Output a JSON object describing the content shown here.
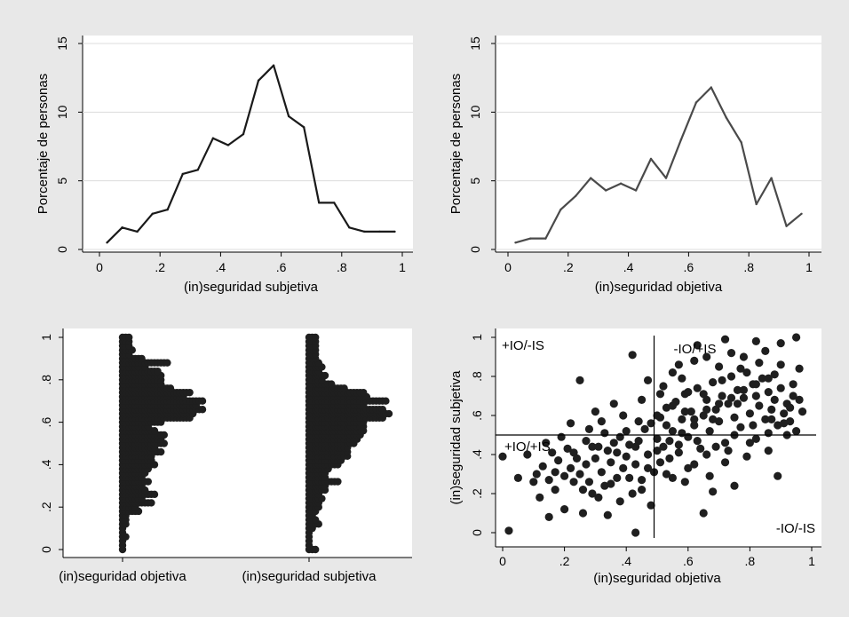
{
  "chart_data": [
    {
      "type": "line",
      "xlabel": "(in)seguridad subjetiva",
      "ylabel": "Porcentaje de personas",
      "xlim": [
        0,
        1
      ],
      "ylim": [
        0,
        15
      ],
      "x_ticks": [
        "0",
        ".2",
        ".4",
        ".6",
        ".8",
        "1"
      ],
      "y_ticks": [
        "0",
        "5",
        "10",
        "15"
      ],
      "x": [
        0.025,
        0.075,
        0.125,
        0.175,
        0.225,
        0.275,
        0.325,
        0.375,
        0.425,
        0.475,
        0.525,
        0.575,
        0.625,
        0.675,
        0.725,
        0.775,
        0.825,
        0.875,
        0.925,
        0.975
      ],
      "values": [
        0.5,
        1.6,
        1.3,
        2.6,
        2.9,
        5.5,
        5.8,
        8.1,
        7.6,
        8.4,
        12.3,
        13.4,
        9.7,
        8.9,
        3.4,
        3.4,
        1.6,
        1.3,
        1.3,
        1.3
      ],
      "color": "#1a1a1a"
    },
    {
      "type": "line",
      "xlabel": "(in)seguridad objetiva",
      "ylabel": "Porcentaje de personas",
      "xlim": [
        0,
        1
      ],
      "ylim": [
        0,
        15
      ],
      "x_ticks": [
        "0",
        ".2",
        ".4",
        ".6",
        ".8",
        "1"
      ],
      "y_ticks": [
        "0",
        "5",
        "10",
        "15"
      ],
      "x": [
        0.025,
        0.075,
        0.125,
        0.175,
        0.225,
        0.275,
        0.325,
        0.375,
        0.425,
        0.475,
        0.525,
        0.575,
        0.625,
        0.675,
        0.725,
        0.775,
        0.825,
        0.875,
        0.925,
        0.975
      ],
      "values": [
        0.5,
        0.8,
        0.8,
        2.9,
        3.9,
        5.2,
        4.3,
        4.8,
        4.3,
        6.6,
        5.2,
        8.0,
        10.7,
        11.8,
        9.6,
        7.8,
        3.3,
        5.2,
        1.7,
        2.6
      ],
      "color": "#4a4a4a"
    },
    {
      "type": "dotplot",
      "ylim": [
        0,
        1
      ],
      "y_ticks": [
        "0",
        ".2",
        ".4",
        ".6",
        ".8",
        "1"
      ],
      "y_bins": [
        0.0,
        0.02,
        0.04,
        0.06,
        0.08,
        0.1,
        0.12,
        0.14,
        0.16,
        0.18,
        0.2,
        0.22,
        0.24,
        0.26,
        0.28,
        0.3,
        0.32,
        0.34,
        0.36,
        0.38,
        0.4,
        0.42,
        0.44,
        0.46,
        0.48,
        0.5,
        0.52,
        0.54,
        0.56,
        0.58,
        0.6,
        0.62,
        0.64,
        0.66,
        0.68,
        0.7,
        0.72,
        0.74,
        0.76,
        0.78,
        0.8,
        0.82,
        0.84,
        0.86,
        0.88,
        0.9,
        0.92,
        0.94,
        0.96,
        0.98,
        1.0
      ],
      "series": [
        {
          "category": "(in)seguridad objetiva",
          "counts": [
            1,
            1,
            1,
            2,
            1,
            1,
            2,
            2,
            2,
            6,
            5,
            10,
            7,
            11,
            8,
            7,
            9,
            7,
            8,
            9,
            11,
            10,
            10,
            13,
            11,
            14,
            13,
            14,
            11,
            9,
            13,
            22,
            23,
            26,
            24,
            26,
            20,
            22,
            16,
            13,
            13,
            13,
            12,
            8,
            15,
            7,
            3,
            4,
            3,
            3,
            3
          ]
        },
        {
          "category": "(in)seguridad subjetiva",
          "counts": [
            3,
            1,
            1,
            1,
            1,
            2,
            4,
            3,
            2,
            3,
            4,
            4,
            5,
            4,
            6,
            6,
            10,
            6,
            6,
            7,
            10,
            11,
            13,
            13,
            13,
            15,
            16,
            17,
            18,
            18,
            18,
            24,
            26,
            24,
            18,
            25,
            19,
            18,
            12,
            8,
            5,
            6,
            4,
            5,
            4,
            3,
            3,
            3,
            3,
            3,
            3
          ]
        }
      ]
    },
    {
      "type": "scatter",
      "xlabel": "(in)seguridad objetiva",
      "ylabel": "(in)seguridad subjetiva",
      "xlim": [
        0,
        1
      ],
      "ylim": [
        0,
        1
      ],
      "x_ticks": [
        "0",
        ".2",
        ".4",
        ".6",
        ".8",
        "1"
      ],
      "y_ticks": [
        "0",
        ".2",
        ".4",
        ".6",
        ".8",
        "1"
      ],
      "ref_lines": {
        "x": 0.49,
        "y": 0.5
      },
      "quadrant_labels": [
        "+IO/-IS",
        "-IO/+IS",
        "+IO/+IS",
        "-IO/-IS"
      ],
      "points": [
        [
          0.02,
          0.01
        ],
        [
          0.0,
          0.39
        ],
        [
          0.05,
          0.28
        ],
        [
          0.15,
          0.08
        ],
        [
          0.43,
          0.0
        ],
        [
          0.42,
          0.91
        ],
        [
          0.48,
          0.14
        ],
        [
          0.95,
          1.0
        ],
        [
          0.96,
          0.84
        ],
        [
          0.72,
          0.99
        ],
        [
          0.82,
          0.98
        ],
        [
          0.9,
          0.97
        ],
        [
          0.63,
          0.96
        ],
        [
          0.65,
          0.1
        ],
        [
          0.75,
          0.24
        ],
        [
          0.89,
          0.29
        ],
        [
          0.68,
          0.21
        ],
        [
          0.25,
          0.78
        ],
        [
          0.1,
          0.26
        ],
        [
          0.11,
          0.3
        ],
        [
          0.13,
          0.34
        ],
        [
          0.15,
          0.27
        ],
        [
          0.17,
          0.31
        ],
        [
          0.18,
          0.37
        ],
        [
          0.2,
          0.29
        ],
        [
          0.22,
          0.33
        ],
        [
          0.23,
          0.41
        ],
        [
          0.25,
          0.3
        ],
        [
          0.26,
          0.22
        ],
        [
          0.27,
          0.35
        ],
        [
          0.28,
          0.26
        ],
        [
          0.29,
          0.44
        ],
        [
          0.3,
          0.38
        ],
        [
          0.31,
          0.18
        ],
        [
          0.32,
          0.31
        ],
        [
          0.33,
          0.24
        ],
        [
          0.34,
          0.42
        ],
        [
          0.35,
          0.36
        ],
        [
          0.36,
          0.46
        ],
        [
          0.37,
          0.28
        ],
        [
          0.38,
          0.49
        ],
        [
          0.39,
          0.33
        ],
        [
          0.4,
          0.39
        ],
        [
          0.41,
          0.45
        ],
        [
          0.42,
          0.2
        ],
        [
          0.43,
          0.35
        ],
        [
          0.44,
          0.47
        ],
        [
          0.45,
          0.27
        ],
        [
          0.46,
          0.53
        ],
        [
          0.47,
          0.4
        ],
        [
          0.48,
          0.56
        ],
        [
          0.49,
          0.31
        ],
        [
          0.5,
          0.48
        ],
        [
          0.51,
          0.59
        ],
        [
          0.52,
          0.44
        ],
        [
          0.53,
          0.64
        ],
        [
          0.54,
          0.38
        ],
        [
          0.55,
          0.52
        ],
        [
          0.56,
          0.67
        ],
        [
          0.57,
          0.45
        ],
        [
          0.58,
          0.58
        ],
        [
          0.59,
          0.71
        ],
        [
          0.6,
          0.49
        ],
        [
          0.61,
          0.62
        ],
        [
          0.62,
          0.55
        ],
        [
          0.63,
          0.74
        ],
        [
          0.64,
          0.43
        ],
        [
          0.65,
          0.6
        ],
        [
          0.66,
          0.68
        ],
        [
          0.67,
          0.52
        ],
        [
          0.68,
          0.77
        ],
        [
          0.69,
          0.63
        ],
        [
          0.7,
          0.57
        ],
        [
          0.71,
          0.7
        ],
        [
          0.72,
          0.46
        ],
        [
          0.73,
          0.66
        ],
        [
          0.74,
          0.8
        ],
        [
          0.75,
          0.59
        ],
        [
          0.76,
          0.73
        ],
        [
          0.77,
          0.54
        ],
        [
          0.78,
          0.69
        ],
        [
          0.79,
          0.82
        ],
        [
          0.8,
          0.61
        ],
        [
          0.81,
          0.76
        ],
        [
          0.82,
          0.48
        ],
        [
          0.83,
          0.65
        ],
        [
          0.84,
          0.79
        ],
        [
          0.85,
          0.58
        ],
        [
          0.86,
          0.72
        ],
        [
          0.87,
          0.63
        ],
        [
          0.88,
          0.68
        ],
        [
          0.89,
          0.55
        ],
        [
          0.9,
          0.74
        ],
        [
          0.91,
          0.61
        ],
        [
          0.92,
          0.66
        ],
        [
          0.93,
          0.57
        ],
        [
          0.94,
          0.7
        ],
        [
          0.95,
          0.52
        ],
        [
          0.97,
          0.62
        ],
        [
          0.62,
          0.88
        ],
        [
          0.7,
          0.85
        ],
        [
          0.78,
          0.9
        ],
        [
          0.85,
          0.93
        ],
        [
          0.55,
          0.82
        ],
        [
          0.47,
          0.78
        ],
        [
          0.52,
          0.75
        ],
        [
          0.58,
          0.79
        ],
        [
          0.66,
          0.9
        ],
        [
          0.74,
          0.92
        ],
        [
          0.36,
          0.66
        ],
        [
          0.3,
          0.62
        ],
        [
          0.22,
          0.56
        ],
        [
          0.19,
          0.49
        ],
        [
          0.14,
          0.46
        ],
        [
          0.08,
          0.4
        ],
        [
          0.12,
          0.18
        ],
        [
          0.2,
          0.12
        ],
        [
          0.26,
          0.1
        ],
        [
          0.34,
          0.09
        ],
        [
          0.38,
          0.16
        ],
        [
          0.45,
          0.22
        ],
        [
          0.55,
          0.28
        ],
        [
          0.6,
          0.33
        ],
        [
          0.66,
          0.4
        ],
        [
          0.72,
          0.36
        ],
        [
          0.79,
          0.39
        ],
        [
          0.86,
          0.42
        ],
        [
          0.92,
          0.5
        ],
        [
          0.55,
          0.65
        ],
        [
          0.6,
          0.72
        ],
        [
          0.68,
          0.58
        ],
        [
          0.76,
          0.66
        ],
        [
          0.82,
          0.7
        ],
        [
          0.5,
          0.6
        ],
        [
          0.44,
          0.57
        ],
        [
          0.4,
          0.52
        ],
        [
          0.33,
          0.51
        ],
        [
          0.27,
          0.47
        ],
        [
          0.16,
          0.41
        ],
        [
          0.24,
          0.38
        ],
        [
          0.31,
          0.44
        ],
        [
          0.37,
          0.41
        ],
        [
          0.43,
          0.44
        ],
        [
          0.51,
          0.36
        ],
        [
          0.57,
          0.41
        ],
        [
          0.63,
          0.47
        ],
        [
          0.69,
          0.44
        ],
        [
          0.75,
          0.5
        ],
        [
          0.81,
          0.55
        ],
        [
          0.87,
          0.58
        ],
        [
          0.93,
          0.64
        ],
        [
          0.53,
          0.55
        ],
        [
          0.59,
          0.62
        ],
        [
          0.65,
          0.71
        ],
        [
          0.71,
          0.78
        ],
        [
          0.77,
          0.84
        ],
        [
          0.83,
          0.87
        ],
        [
          0.88,
          0.81
        ],
        [
          0.94,
          0.76
        ],
        [
          0.96,
          0.68
        ],
        [
          0.57,
          0.86
        ],
        [
          0.51,
          0.71
        ],
        [
          0.45,
          0.68
        ],
        [
          0.39,
          0.6
        ],
        [
          0.32,
          0.57
        ],
        [
          0.28,
          0.53
        ],
        [
          0.21,
          0.43
        ],
        [
          0.17,
          0.22
        ],
        [
          0.23,
          0.26
        ],
        [
          0.29,
          0.2
        ],
        [
          0.35,
          0.25
        ],
        [
          0.41,
          0.28
        ],
        [
          0.47,
          0.33
        ],
        [
          0.53,
          0.3
        ],
        [
          0.59,
          0.26
        ],
        [
          0.62,
          0.35
        ],
        [
          0.67,
          0.29
        ],
        [
          0.73,
          0.42
        ],
        [
          0.8,
          0.46
        ],
        [
          0.86,
          0.51
        ],
        [
          0.91,
          0.56
        ],
        [
          0.5,
          0.42
        ],
        [
          0.54,
          0.47
        ],
        [
          0.58,
          0.51
        ],
        [
          0.62,
          0.58
        ],
        [
          0.66,
          0.63
        ],
        [
          0.7,
          0.66
        ],
        [
          0.74,
          0.69
        ],
        [
          0.78,
          0.73
        ],
        [
          0.82,
          0.76
        ],
        [
          0.86,
          0.79
        ],
        [
          0.9,
          0.86
        ]
      ]
    }
  ]
}
